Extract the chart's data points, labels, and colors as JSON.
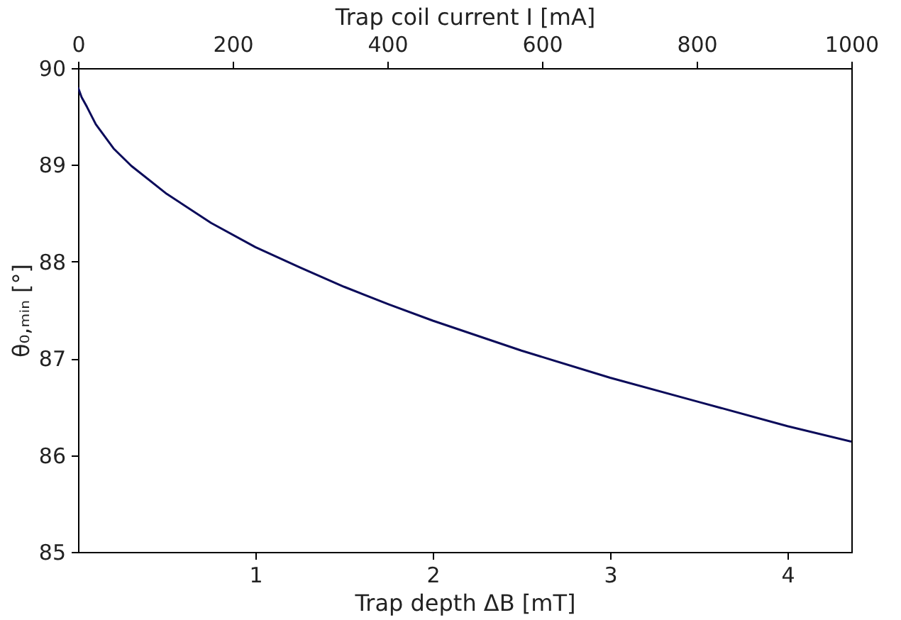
{
  "chart_data": {
    "type": "line",
    "xlabel": "Trap depth ΔB [mT]",
    "x2label": "Trap coil current I [mA]",
    "ylabel": "θ₀,ₘᵢₙ [°]",
    "x": [
      0,
      0.02,
      0.05,
      0.1,
      0.2,
      0.3,
      0.5,
      0.75,
      1,
      1.25,
      1.5,
      1.75,
      2,
      2.5,
      3,
      3.5,
      4,
      4.36
    ],
    "series": [
      {
        "color": "#0b0b5a",
        "values": [
          89.8,
          89.7,
          89.6,
          89.42,
          89.17,
          88.99,
          88.7,
          88.4,
          88.15,
          87.94,
          87.74,
          87.56,
          87.39,
          87.08,
          86.8,
          86.55,
          86.3,
          86.14
        ]
      }
    ],
    "xlim": [
      0,
      4.36
    ],
    "xticks": [
      1,
      2,
      3,
      4
    ],
    "x2lim": [
      0,
      1000
    ],
    "x2ticks": [
      0,
      200,
      400,
      600,
      800,
      1000
    ],
    "ylim": [
      85,
      90
    ],
    "yticks": [
      85,
      86,
      87,
      88,
      89,
      90
    ],
    "grid": false,
    "line_style": "solid"
  }
}
